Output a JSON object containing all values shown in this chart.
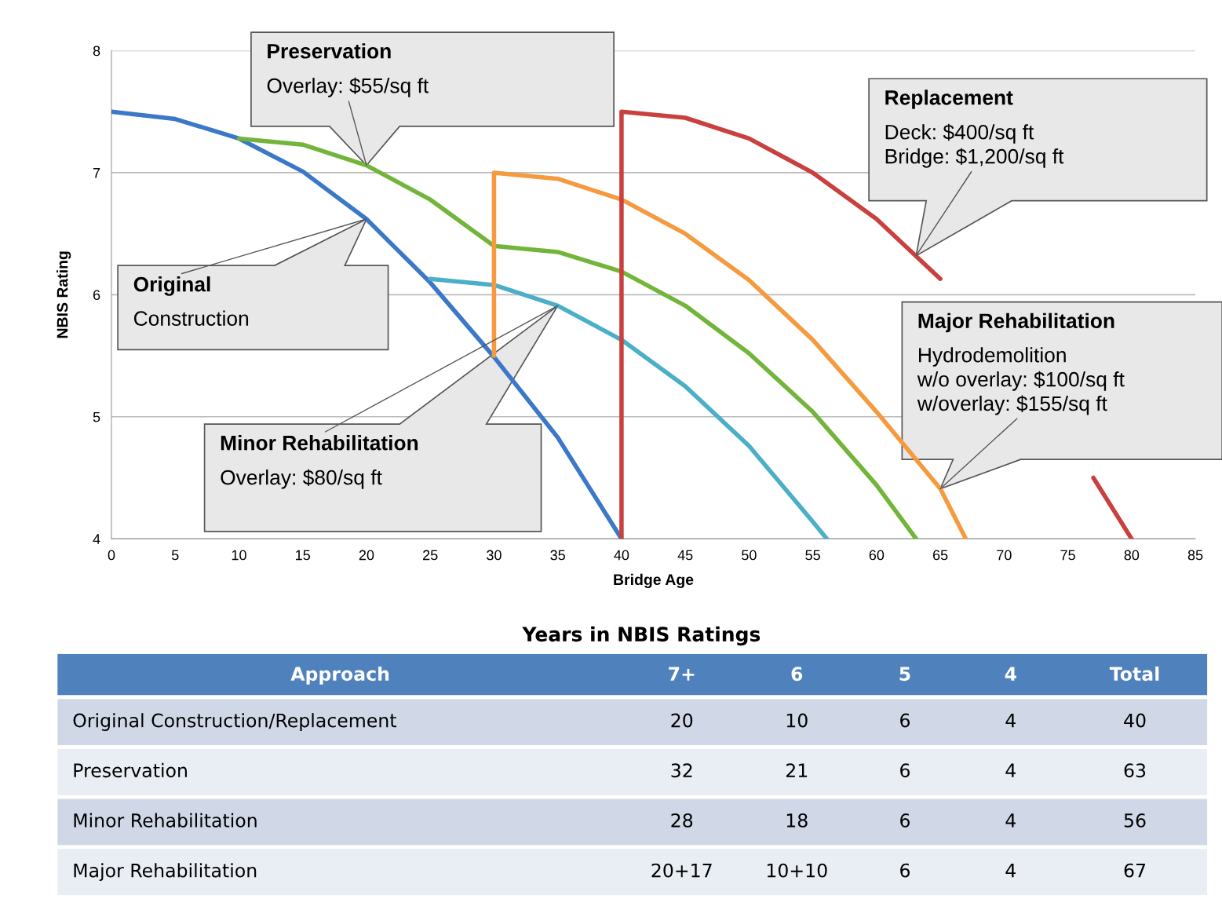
{
  "chart_data": [
    {
      "type": "line",
      "xlabel": "Bridge Age",
      "ylabel": "NBIS Rating",
      "xlim": [
        0,
        85
      ],
      "xticks": [
        0,
        5,
        10,
        15,
        20,
        25,
        30,
        35,
        40,
        45,
        50,
        55,
        60,
        65,
        70,
        75,
        80,
        85
      ],
      "ylim": [
        4,
        8
      ],
      "yticks": [
        4,
        5,
        6,
        7,
        8
      ],
      "grid": "y",
      "legend": false,
      "marker": "none",
      "line_style": "solid",
      "series": [
        {
          "color": "#3b78c8",
          "x": [
            0,
            5,
            10,
            15,
            20,
            25,
            30,
            35,
            40
          ],
          "values": [
            7.5,
            7.44,
            7.28,
            7.01,
            6.62,
            6.1,
            5.49,
            4.83,
            4.0
          ]
        },
        {
          "color": "#73b53a",
          "x": [
            10,
            15,
            20,
            25,
            30,
            35,
            40,
            45,
            50,
            55,
            60,
            63.1
          ],
          "values": [
            7.28,
            7.23,
            7.06,
            6.78,
            6.4,
            6.35,
            6.19,
            5.91,
            5.52,
            5.04,
            4.44,
            4.0
          ]
        },
        {
          "color": "#4bafc8",
          "x": [
            25,
            30,
            35,
            40,
            45,
            50,
            55,
            56.1
          ],
          "values": [
            6.13,
            6.08,
            5.91,
            5.63,
            5.25,
            4.76,
            4.14,
            4.0
          ]
        },
        {
          "color": "#f59a3f",
          "x": [
            30,
            30,
            35,
            40,
            45,
            50,
            55,
            60,
            65,
            67
          ],
          "values": [
            5.5,
            7.0,
            6.95,
            6.78,
            6.5,
            6.12,
            5.63,
            5.04,
            4.41,
            4.0
          ]
        },
        {
          "color": "#c9413f",
          "x": [
            40,
            40,
            45,
            50,
            55,
            60,
            65,
            70,
            75,
            77,
            80
          ],
          "values": [
            4.0,
            7.5,
            7.45,
            7.28,
            7.0,
            6.62,
            6.13,
            null,
            null,
            4.5,
            4.0
          ]
        }
      ],
      "annotations": [
        {
          "text": "Preservation\nOverlay: $55/sq ft",
          "x": 20,
          "y": 7.06
        },
        {
          "text": "Original\nConstruction",
          "x": 20,
          "y": 6.62
        },
        {
          "text": "Minor Rehabilitation\nOverlay: $80/sq ft",
          "x": 35,
          "y": 5.91
        },
        {
          "text": "Replacement\nDeck: $400/sq ft\nBridge: $1,200/sq ft",
          "x": 63.1,
          "y": 6.32
        },
        {
          "text": "Major Rehabilitation\nHydrodemolition\nw/o overlay: $100/sq ft\nw/overlay: $155/sq ft",
          "x": 65,
          "y": 4.41
        }
      ]
    },
    {
      "type": "other",
      "title": "Years in NBIS Ratings",
      "categories": [
        "Approach",
        "7+",
        "6",
        "5",
        "4",
        "Total"
      ],
      "annotations": [
        "Original Construction/Replacement",
        "20",
        "10",
        "6",
        "4",
        "40",
        "Preservation",
        "32",
        "21",
        "6",
        "4",
        "63",
        "Minor Rehabilitation",
        "28",
        "18",
        "6",
        "4",
        "56",
        "Major Rehabilitation",
        "20+17",
        "10+10",
        "6",
        "4",
        "67"
      ]
    }
  ]
}
